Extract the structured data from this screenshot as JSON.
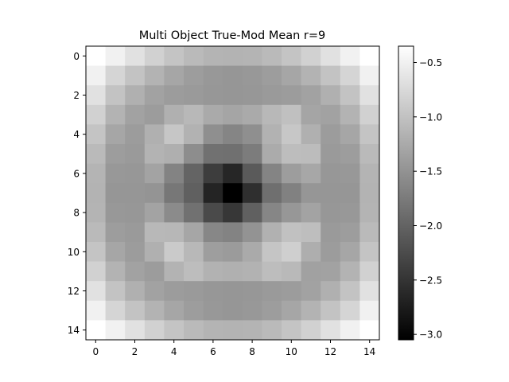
{
  "chart_data": {
    "type": "heatmap",
    "title": "Multi Object True-Mod Mean r=9",
    "xlabel": "",
    "ylabel": "",
    "colormap": "gray",
    "x_ticks": [
      "0",
      "2",
      "4",
      "6",
      "8",
      "10",
      "12",
      "14"
    ],
    "y_ticks": [
      "0",
      "2",
      "4",
      "6",
      "8",
      "10",
      "12",
      "14"
    ],
    "colorbar_ticks": [
      {
        "value": -0.5,
        "label": "−0.5"
      },
      {
        "value": -1.0,
        "label": "−1.0"
      },
      {
        "value": -1.5,
        "label": "−1.5"
      },
      {
        "value": -2.0,
        "label": "−2.0"
      },
      {
        "value": -2.5,
        "label": "−2.5"
      },
      {
        "value": -3.0,
        "label": "−3.0"
      }
    ],
    "vmin": -3.05,
    "vmax": -0.35,
    "grid": false,
    "values": [
      [
        -0.35,
        -0.5,
        -0.67,
        -0.84,
        -0.98,
        -1.08,
        -1.14,
        -1.16,
        -1.14,
        -1.08,
        -0.98,
        -0.84,
        -0.67,
        -0.5,
        -0.35
      ],
      [
        -0.5,
        -0.8,
        -0.99,
        -1.16,
        -1.29,
        -1.39,
        -1.44,
        -1.46,
        -1.44,
        -1.39,
        -1.29,
        -1.16,
        -0.99,
        -0.8,
        -0.5
      ],
      [
        -0.67,
        -0.99,
        -1.19,
        -1.34,
        -1.4,
        -1.42,
        -1.45,
        -1.46,
        -1.45,
        -1.42,
        -1.4,
        -1.34,
        -1.19,
        -0.99,
        -0.67
      ],
      [
        -0.84,
        -1.16,
        -1.34,
        -1.4,
        -1.19,
        -1.1,
        -1.25,
        -1.3,
        -1.25,
        -1.1,
        -1.02,
        -1.3,
        -1.34,
        -1.16,
        -0.84
      ],
      [
        -0.98,
        -1.29,
        -1.4,
        -1.19,
        -0.95,
        -1.17,
        -1.54,
        -1.64,
        -1.54,
        -1.17,
        -0.94,
        -1.19,
        -1.4,
        -1.29,
        -0.98
      ],
      [
        -1.08,
        -1.39,
        -1.42,
        -1.15,
        -1.2,
        -1.56,
        -1.85,
        -1.86,
        -1.74,
        -1.24,
        -1.05,
        -1.06,
        -1.42,
        -1.39,
        -1.08
      ],
      [
        -1.14,
        -1.44,
        -1.45,
        -1.32,
        -1.66,
        -1.99,
        -2.4,
        -2.65,
        -2.1,
        -1.65,
        -1.39,
        -1.28,
        -1.45,
        -1.44,
        -1.14
      ],
      [
        -1.16,
        -1.46,
        -1.46,
        -1.48,
        -1.79,
        -2.03,
        -2.67,
        -3.05,
        -2.55,
        -1.88,
        -1.68,
        -1.46,
        -1.46,
        -1.46,
        -1.16
      ],
      [
        -1.14,
        -1.44,
        -1.45,
        -1.32,
        -1.58,
        -1.85,
        -2.27,
        -2.47,
        -2.03,
        -1.63,
        -1.45,
        -1.32,
        -1.45,
        -1.44,
        -1.14
      ],
      [
        -1.08,
        -1.39,
        -1.42,
        -1.1,
        -1.11,
        -1.29,
        -1.62,
        -1.66,
        -1.49,
        -1.18,
        -1.01,
        -1.04,
        -1.42,
        -1.39,
        -1.08
      ],
      [
        -0.98,
        -1.29,
        -1.4,
        -1.19,
        -0.91,
        -1.1,
        -1.38,
        -1.41,
        -1.25,
        -0.96,
        -0.86,
        -1.21,
        -1.4,
        -1.29,
        -0.98
      ],
      [
        -0.84,
        -1.16,
        -1.34,
        -1.4,
        -1.16,
        -1.05,
        -1.17,
        -1.19,
        -1.17,
        -1.05,
        -1.09,
        -1.35,
        -1.34,
        -1.16,
        -0.84
      ],
      [
        -0.67,
        -0.99,
        -1.19,
        -1.34,
        -1.4,
        -1.42,
        -1.45,
        -1.46,
        -1.45,
        -1.42,
        -1.4,
        -1.34,
        -1.19,
        -0.99,
        -0.67
      ],
      [
        -0.5,
        -0.8,
        -0.99,
        -1.16,
        -1.29,
        -1.39,
        -1.44,
        -1.46,
        -1.44,
        -1.39,
        -1.29,
        -1.16,
        -0.99,
        -0.8,
        -0.5
      ],
      [
        -0.35,
        -0.5,
        -0.67,
        -0.84,
        -0.98,
        -1.08,
        -1.14,
        -1.16,
        -1.14,
        -1.08,
        -0.98,
        -0.84,
        -0.67,
        -0.5,
        -0.35
      ]
    ]
  }
}
